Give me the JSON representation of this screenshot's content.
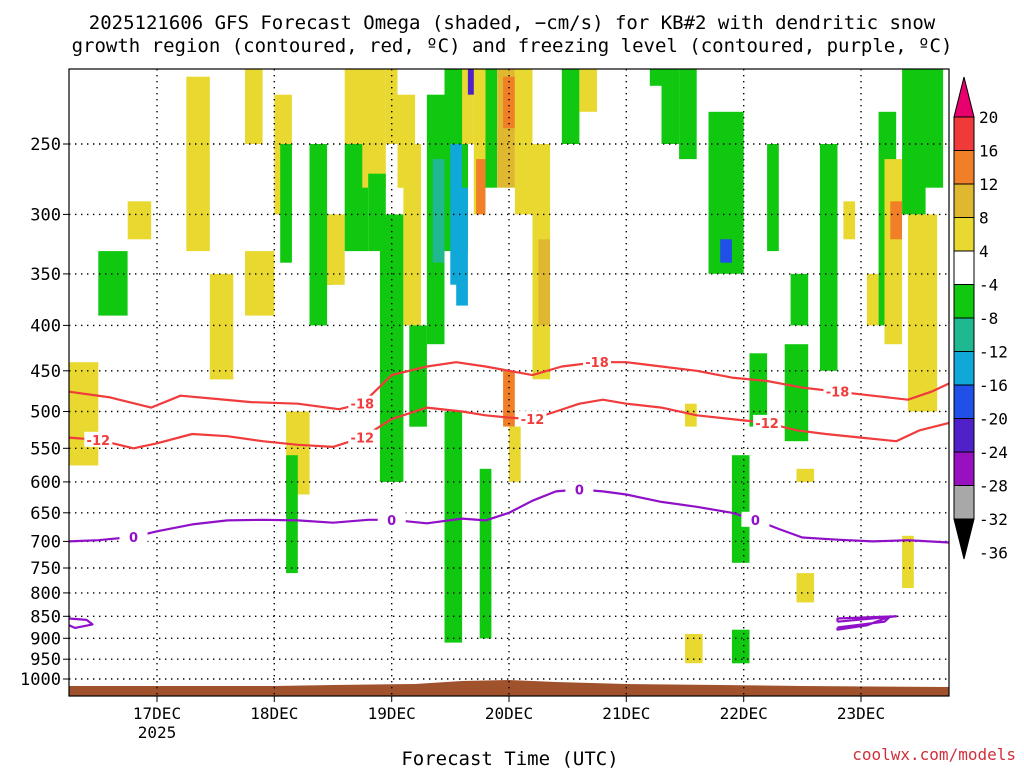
{
  "chart_data": {
    "type": "heatmap",
    "title_line1": "2025121606 GFS Forecast Omega (shaded, −cm/s) for KB#2 with dendritic snow",
    "title_line2": "growth region (contoured, red, ºC) and freezing level (contoured, purple, ºC)",
    "xlabel": "Forecast Time (UTC)",
    "ylabel": "",
    "credit": "coolwx.com/models",
    "x_ticks": [
      {
        "label": "17DEC",
        "day": 17
      },
      {
        "label": "18DEC",
        "day": 18
      },
      {
        "label": "19DEC",
        "day": 19
      },
      {
        "label": "20DEC",
        "day": 20
      },
      {
        "label": "21DEC",
        "day": 21
      },
      {
        "label": "22DEC",
        "day": 22
      },
      {
        "label": "23DEC",
        "day": 23
      }
    ],
    "x_year_label": "2025",
    "xlim": [
      16.25,
      23.75
    ],
    "y_ticks": [
      "250",
      "300",
      "350",
      "400",
      "450",
      "500",
      "550",
      "600",
      "650",
      "700",
      "750",
      "800",
      "850",
      "900",
      "950",
      "1000"
    ],
    "ylim": [
      1000,
      200
    ],
    "y_scale": "log-pressure",
    "grid": true,
    "colorbar": {
      "levels": [
        "20",
        "16",
        "12",
        "8",
        "4",
        "-4",
        "-8",
        "-12",
        "-16",
        "-20",
        "-24",
        "-28",
        "-32",
        "-36"
      ],
      "colors": [
        "#e8006e",
        "#f03a3a",
        "#f07f27",
        "#e0b830",
        "#e8d830",
        "#ffffff",
        "#10c810",
        "#20b890",
        "#10a8d8",
        "#2050e8",
        "#5020c8",
        "#9810c0",
        "#a8a8a8",
        "#000000"
      ]
    },
    "contours": {
      "red_color": "#f03c3c",
      "purple_color": "#9010c8",
      "dgz_top_minus18": {
        "label": "-18",
        "x": [
          16.25,
          16.6,
          16.95,
          17.2,
          17.5,
          17.8,
          18.2,
          18.55,
          18.75,
          19.0,
          19.3,
          19.55,
          19.8,
          20.0,
          20.2,
          20.45,
          20.75,
          21.0,
          21.3,
          21.6,
          21.9,
          22.2,
          22.5,
          22.8,
          23.1,
          23.4,
          23.6,
          23.75
        ],
        "y": [
          475,
          482,
          495,
          480,
          484,
          488,
          490,
          497,
          490,
          455,
          445,
          440,
          445,
          450,
          455,
          445,
          440,
          440,
          445,
          450,
          458,
          462,
          470,
          475,
          480,
          485,
          475,
          465
        ]
      },
      "dgz_bottom_minus12": {
        "label": "-12",
        "x": [
          16.25,
          16.5,
          16.8,
          17.0,
          17.3,
          17.6,
          17.9,
          18.2,
          18.5,
          18.75,
          19.0,
          19.3,
          19.6,
          19.8,
          20.0,
          20.2,
          20.4,
          20.6,
          20.8,
          21.0,
          21.3,
          21.6,
          21.9,
          22.2,
          22.45,
          22.7,
          23.0,
          23.3,
          23.5,
          23.75
        ],
        "y": [
          535,
          538,
          550,
          543,
          530,
          533,
          540,
          545,
          548,
          535,
          510,
          495,
          500,
          505,
          508,
          510,
          500,
          490,
          485,
          490,
          495,
          505,
          510,
          515,
          525,
          530,
          535,
          540,
          525,
          515
        ]
      },
      "freezing_level_0": {
        "label": "0",
        "x": [
          16.25,
          16.5,
          16.8,
          17.0,
          17.3,
          17.6,
          17.9,
          18.2,
          18.5,
          18.8,
          19.0,
          19.3,
          19.6,
          19.8,
          20.0,
          20.2,
          20.4,
          20.6,
          20.8,
          21.0,
          21.3,
          21.6,
          21.9,
          22.1,
          22.3,
          22.5,
          22.8,
          23.1,
          23.4,
          23.75
        ],
        "y": [
          700,
          698,
          692,
          682,
          670,
          663,
          662,
          663,
          667,
          662,
          662,
          668,
          660,
          663,
          650,
          630,
          615,
          612,
          615,
          620,
          632,
          640,
          650,
          662,
          678,
          693,
          697,
          700,
          698,
          702
        ]
      },
      "freezing_isolated": [
        {
          "x": [
            16.25,
            16.4,
            16.45,
            16.3,
            16.25
          ],
          "y": [
            855,
            858,
            868,
            876,
            870
          ]
        },
        {
          "x": [
            22.8,
            23.2,
            23.25,
            23.05,
            22.8,
            22.8
          ],
          "y": [
            875,
            862,
            850,
            870,
            880,
            875
          ]
        },
        {
          "x": [
            22.8,
            23.3,
            23.3,
            22.8,
            22.8
          ],
          "y": [
            862,
            850,
            850,
            855,
            862
          ]
        }
      ]
    },
    "omega_cells": [
      {
        "x": [
          16.25,
          16.5
        ],
        "y": [
          440,
          575
        ],
        "v": 6
      },
      {
        "x": [
          16.5,
          16.75
        ],
        "y": [
          330,
          390
        ],
        "v": -6
      },
      {
        "x": [
          16.75,
          16.95
        ],
        "y": [
          290,
          320
        ],
        "v": 6
      },
      {
        "x": [
          17.25,
          17.45
        ],
        "y": [
          210,
          330
        ],
        "v": 6
      },
      {
        "x": [
          17.45,
          17.65
        ],
        "y": [
          350,
          460
        ],
        "v": 6
      },
      {
        "x": [
          17.75,
          17.9
        ],
        "y": [
          200,
          250
        ],
        "v": 6
      },
      {
        "x": [
          17.75,
          18.0
        ],
        "y": [
          330,
          390
        ],
        "v": 6
      },
      {
        "x": [
          18.0,
          18.15
        ],
        "y": [
          220,
          300
        ],
        "v": 6
      },
      {
        "x": [
          18.05,
          18.15
        ],
        "y": [
          250,
          340
        ],
        "v": -6
      },
      {
        "x": [
          18.1,
          18.3
        ],
        "y": [
          500,
          620
        ],
        "v": 6
      },
      {
        "x": [
          18.1,
          18.2
        ],
        "y": [
          560,
          760
        ],
        "v": -6
      },
      {
        "x": [
          18.3,
          18.45
        ],
        "y": [
          250,
          400
        ],
        "v": -6
      },
      {
        "x": [
          18.35,
          18.5
        ],
        "y": [
          300,
          360
        ],
        "v": -6
      },
      {
        "x": [
          18.45,
          18.6
        ],
        "y": [
          300,
          360
        ],
        "v": 6
      },
      {
        "x": [
          18.6,
          18.8
        ],
        "y": [
          200,
          250
        ],
        "v": 6
      },
      {
        "x": [
          18.6,
          18.8
        ],
        "y": [
          250,
          330
        ],
        "v": -6
      },
      {
        "x": [
          18.75,
          18.95
        ],
        "y": [
          200,
          280
        ],
        "v": 6
      },
      {
        "x": [
          18.8,
          18.95
        ],
        "y": [
          270,
          330
        ],
        "v": -6
      },
      {
        "x": [
          18.9,
          19.1
        ],
        "y": [
          300,
          600
        ],
        "v": -6
      },
      {
        "x": [
          18.95,
          19.05
        ],
        "y": [
          200,
          250
        ],
        "v": 6
      },
      {
        "x": [
          19.05,
          19.2
        ],
        "y": [
          220,
          280
        ],
        "v": 6
      },
      {
        "x": [
          19.1,
          19.25
        ],
        "y": [
          250,
          400
        ],
        "v": 6
      },
      {
        "x": [
          19.15,
          19.3
        ],
        "y": [
          400,
          520
        ],
        "v": -6
      },
      {
        "x": [
          19.3,
          19.45
        ],
        "y": [
          220,
          420
        ],
        "v": -6
      },
      {
        "x": [
          19.35,
          19.45
        ],
        "y": [
          260,
          340
        ],
        "v": -10
      },
      {
        "x": [
          19.45,
          19.65
        ],
        "y": [
          200,
          330
        ],
        "v": -6
      },
      {
        "x": [
          19.5,
          19.6
        ],
        "y": [
          250,
          360
        ],
        "v": -12
      },
      {
        "x": [
          19.55,
          19.65
        ],
        "y": [
          280,
          380
        ],
        "v": -14
      },
      {
        "x": [
          19.45,
          19.6
        ],
        "y": [
          500,
          910
        ],
        "v": -6
      },
      {
        "x": [
          19.6,
          19.7
        ],
        "y": [
          200,
          250
        ],
        "v": 6
      },
      {
        "x": [
          19.65,
          19.75
        ],
        "y": [
          200,
          220
        ],
        "v": -22
      },
      {
        "x": [
          19.7,
          19.8
        ],
        "y": [
          200,
          300
        ],
        "v": 6
      },
      {
        "x": [
          19.72,
          19.8
        ],
        "y": [
          260,
          300
        ],
        "v": 14
      },
      {
        "x": [
          19.8,
          19.9
        ],
        "y": [
          200,
          280
        ],
        "v": -6
      },
      {
        "x": [
          19.9,
          20.05
        ],
        "y": [
          200,
          280
        ],
        "v": 10
      },
      {
        "x": [
          19.95,
          20.05
        ],
        "y": [
          210,
          240
        ],
        "v": 14
      },
      {
        "x": [
          19.95,
          20.05
        ],
        "y": [
          450,
          520
        ],
        "v": 12
      },
      {
        "x": [
          20.0,
          20.1
        ],
        "y": [
          520,
          600
        ],
        "v": 6
      },
      {
        "x": [
          19.75,
          19.85
        ],
        "y": [
          580,
          900
        ],
        "v": -6
      },
      {
        "x": [
          20.05,
          20.2
        ],
        "y": [
          200,
          300
        ],
        "v": 6
      },
      {
        "x": [
          20.2,
          20.35
        ],
        "y": [
          250,
          460
        ],
        "v": 6
      },
      {
        "x": [
          20.25,
          20.35
        ],
        "y": [
          320,
          400
        ],
        "v": 10
      },
      {
        "x": [
          20.45,
          20.6
        ],
        "y": [
          200,
          250
        ],
        "v": -6
      },
      {
        "x": [
          20.6,
          20.75
        ],
        "y": [
          200,
          230
        ],
        "v": 6
      },
      {
        "x": [
          21.2,
          21.3
        ],
        "y": [
          200,
          215
        ],
        "v": -6
      },
      {
        "x": [
          21.3,
          21.45
        ],
        "y": [
          200,
          250
        ],
        "v": -6
      },
      {
        "x": [
          21.45,
          21.6
        ],
        "y": [
          200,
          260
        ],
        "v": -6
      },
      {
        "x": [
          21.5,
          21.6
        ],
        "y": [
          490,
          520
        ],
        "v": 6
      },
      {
        "x": [
          21.7,
          22.0
        ],
        "y": [
          230,
          350
        ],
        "v": -6
      },
      {
        "x": [
          21.8,
          21.9
        ],
        "y": [
          320,
          340
        ],
        "v": -16
      },
      {
        "x": [
          21.9,
          22.05
        ],
        "y": [
          560,
          740
        ],
        "v": -6
      },
      {
        "x": [
          21.9,
          22.05
        ],
        "y": [
          880,
          960
        ],
        "v": -6
      },
      {
        "x": [
          21.5,
          21.65
        ],
        "y": [
          890,
          960
        ],
        "v": 6
      },
      {
        "x": [
          22.05,
          22.2
        ],
        "y": [
          430,
          520
        ],
        "v": -6
      },
      {
        "x": [
          22.2,
          22.3
        ],
        "y": [
          250,
          330
        ],
        "v": -6
      },
      {
        "x": [
          22.35,
          22.55
        ],
        "y": [
          420,
          540
        ],
        "v": -6
      },
      {
        "x": [
          22.4,
          22.55
        ],
        "y": [
          350,
          400
        ],
        "v": -6
      },
      {
        "x": [
          22.45,
          22.6
        ],
        "y": [
          760,
          820
        ],
        "v": 6
      },
      {
        "x": [
          22.45,
          22.6
        ],
        "y": [
          580,
          600
        ],
        "v": 6
      },
      {
        "x": [
          22.65,
          22.8
        ],
        "y": [
          250,
          450
        ],
        "v": -6
      },
      {
        "x": [
          22.85,
          22.95
        ],
        "y": [
          290,
          320
        ],
        "v": 6
      },
      {
        "x": [
          23.05,
          23.15
        ],
        "y": [
          350,
          400
        ],
        "v": 6
      },
      {
        "x": [
          23.15,
          23.3
        ],
        "y": [
          230,
          400
        ],
        "v": -6
      },
      {
        "x": [
          23.2,
          23.35
        ],
        "y": [
          260,
          420
        ],
        "v": 6
      },
      {
        "x": [
          23.25,
          23.35
        ],
        "y": [
          290,
          320
        ],
        "v": 12
      },
      {
        "x": [
          23.35,
          23.55
        ],
        "y": [
          200,
          300
        ],
        "v": -6
      },
      {
        "x": [
          23.4,
          23.65
        ],
        "y": [
          300,
          500
        ],
        "v": 6
      },
      {
        "x": [
          23.55,
          23.7
        ],
        "y": [
          200,
          280
        ],
        "v": -6
      },
      {
        "x": [
          23.35,
          23.45
        ],
        "y": [
          690,
          790
        ],
        "v": 6
      }
    ]
  }
}
